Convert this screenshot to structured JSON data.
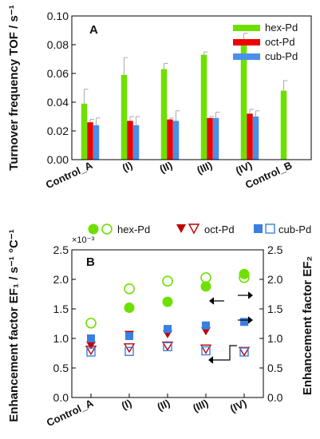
{
  "chart_data": [
    {
      "panel": "A",
      "type": "bar",
      "ylabel": "Turnover frequency TOF / s⁻¹",
      "ylim": [
        0,
        0.1
      ],
      "yticks": [
        "0.00",
        "0.02",
        "0.04",
        "0.06",
        "0.08",
        "0.10"
      ],
      "categories": [
        "Control_A",
        "(I)",
        "(II)",
        "(III)",
        "(IV)",
        "Control_B"
      ],
      "legend_position": "top-right",
      "series": [
        {
          "name": "hex-Pd",
          "color": "#6ee000",
          "values": [
            0.039,
            0.059,
            0.063,
            0.073,
            0.081,
            0.048
          ],
          "errors": [
            0.01,
            0.012,
            0.004,
            0.002,
            0.007,
            0.007
          ]
        },
        {
          "name": "oct-Pd",
          "color": "#ee0000",
          "values": [
            0.026,
            0.027,
            0.028,
            0.029,
            0.032,
            null
          ],
          "errors": [
            0.002,
            0.003,
            0.001,
            0.001,
            0.003,
            null
          ]
        },
        {
          "name": "cub-Pd",
          "color": "#4a8fe8",
          "values": [
            0.024,
            0.024,
            0.027,
            0.029,
            0.03,
            null
          ],
          "errors": [
            0.005,
            0.006,
            0.007,
            0.004,
            0.004,
            null
          ]
        }
      ]
    },
    {
      "panel": "B",
      "type": "scatter",
      "ylabel_left": "Enhancement factor EF₁ / s⁻¹ °C⁻¹",
      "ylabel_right": "Enhancement factor EF₂",
      "multiplier_label": "×10⁻³",
      "ylim": [
        0,
        2.5
      ],
      "yticks": [
        "0.0",
        "0.5",
        "1.0",
        "1.5",
        "2.0",
        "2.5"
      ],
      "categories": [
        "Control_A",
        "(I)",
        "(II)",
        "(III)",
        "(IV)"
      ],
      "legend_position": "top",
      "legend": [
        {
          "name": "hex-Pd",
          "color": "#6ee000",
          "marker": "circle"
        },
        {
          "name": "oct-Pd",
          "color": "#c00000",
          "marker": "triangle"
        },
        {
          "name": "cub-Pd",
          "color": "#3a7fe0",
          "marker": "square"
        }
      ],
      "series": [
        {
          "name": "hex-Pd EF1",
          "color": "#6ee000",
          "marker": "circle",
          "filled": true,
          "values": [
            null,
            1.52,
            1.62,
            1.88,
            2.09
          ]
        },
        {
          "name": "hex-Pd EF2",
          "color": "#6ee000",
          "marker": "circle",
          "filled": false,
          "values": [
            1.26,
            1.84,
            1.97,
            2.03,
            2.03
          ]
        },
        {
          "name": "oct-Pd EF1",
          "color": "#c00000",
          "marker": "triangle",
          "filled": true,
          "values": [
            0.88,
            1.06,
            1.07,
            1.12,
            null
          ]
        },
        {
          "name": "oct-Pd EF2",
          "color": "#c00000",
          "marker": "triangle",
          "filled": false,
          "values": [
            0.8,
            0.84,
            0.87,
            0.82,
            0.78
          ]
        },
        {
          "name": "cub-Pd EF1",
          "color": "#3a7fe0",
          "marker": "square",
          "filled": true,
          "values": [
            1.0,
            1.04,
            1.16,
            1.22,
            1.28
          ]
        },
        {
          "name": "cub-Pd EF2",
          "color": "#3a7fe0",
          "marker": "square",
          "filled": false,
          "values": [
            0.77,
            0.78,
            0.86,
            0.79,
            0.77
          ]
        }
      ]
    }
  ]
}
